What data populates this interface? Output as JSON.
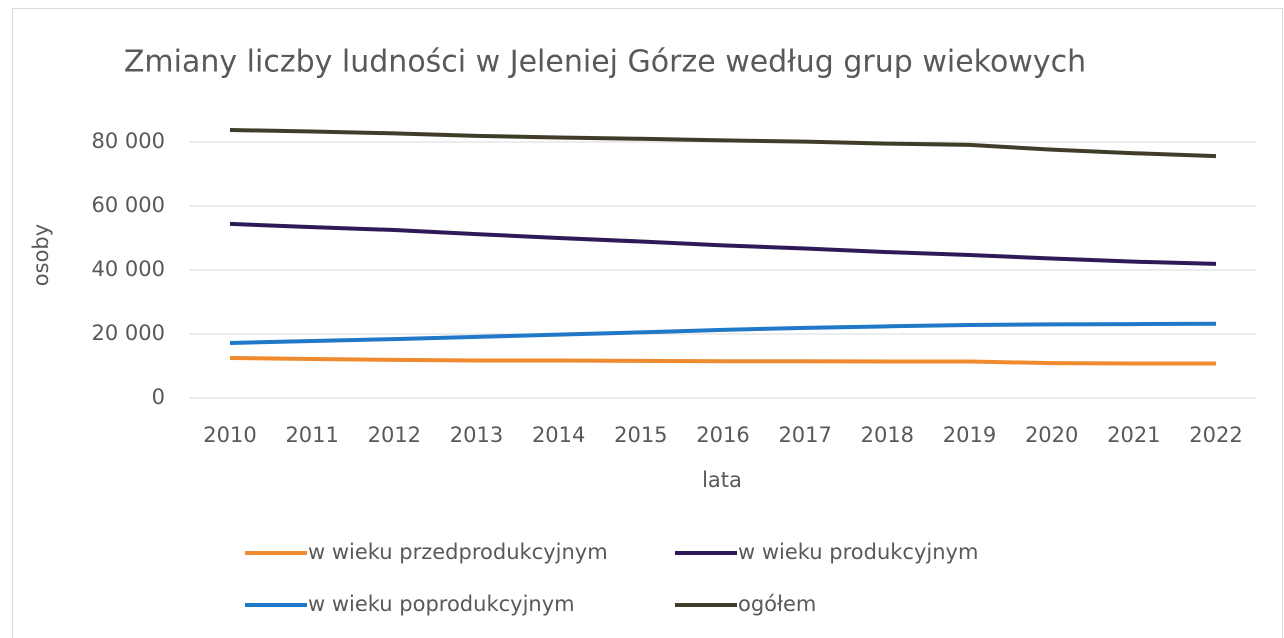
{
  "chart_data": {
    "type": "line",
    "title": "Zmiany liczby ludności w Jeleniej Górze według grup wiekowych",
    "xlabel": "lata",
    "ylabel": "osoby",
    "categories": [
      "2010",
      "2011",
      "2012",
      "2013",
      "2014",
      "2015",
      "2016",
      "2017",
      "2018",
      "2019",
      "2020",
      "2021",
      "2022"
    ],
    "series": [
      {
        "name": "w wieku przedprodukcyjnym",
        "color": "#ef8a2f",
        "values": [
          12500,
          12200,
          11900,
          11700,
          11700,
          11600,
          11500,
          11500,
          11400,
          11400,
          10900,
          10800,
          10800
        ]
      },
      {
        "name": "w wieku produkcyjnym",
        "color": "#2e1a56",
        "values": [
          54400,
          53400,
          52500,
          51200,
          50000,
          48900,
          47700,
          46700,
          45600,
          44700,
          43600,
          42600,
          41900
        ]
      },
      {
        "name": "w wieku poprodukcyjnym",
        "color": "#1f78c8",
        "values": [
          17200,
          17800,
          18400,
          19100,
          19800,
          20500,
          21300,
          21900,
          22400,
          22800,
          23000,
          23100,
          23200
        ]
      },
      {
        "name": "ogółem",
        "color": "#3f3d2a",
        "values": [
          83750,
          83300,
          82700,
          81900,
          81400,
          81000,
          80500,
          80100,
          79500,
          79100,
          77600,
          76500,
          75600
        ]
      }
    ],
    "ylim": [
      0,
      90000
    ],
    "yticks": [
      0,
      {
        "value": 20000,
        "label": "20 000"
      },
      {
        "value": 40000,
        "label": "40 000"
      },
      {
        "value": 60000,
        "label": "60 000"
      },
      {
        "value": 80000,
        "label": "80 000"
      }
    ],
    "grid": true,
    "legend": "bottom"
  }
}
